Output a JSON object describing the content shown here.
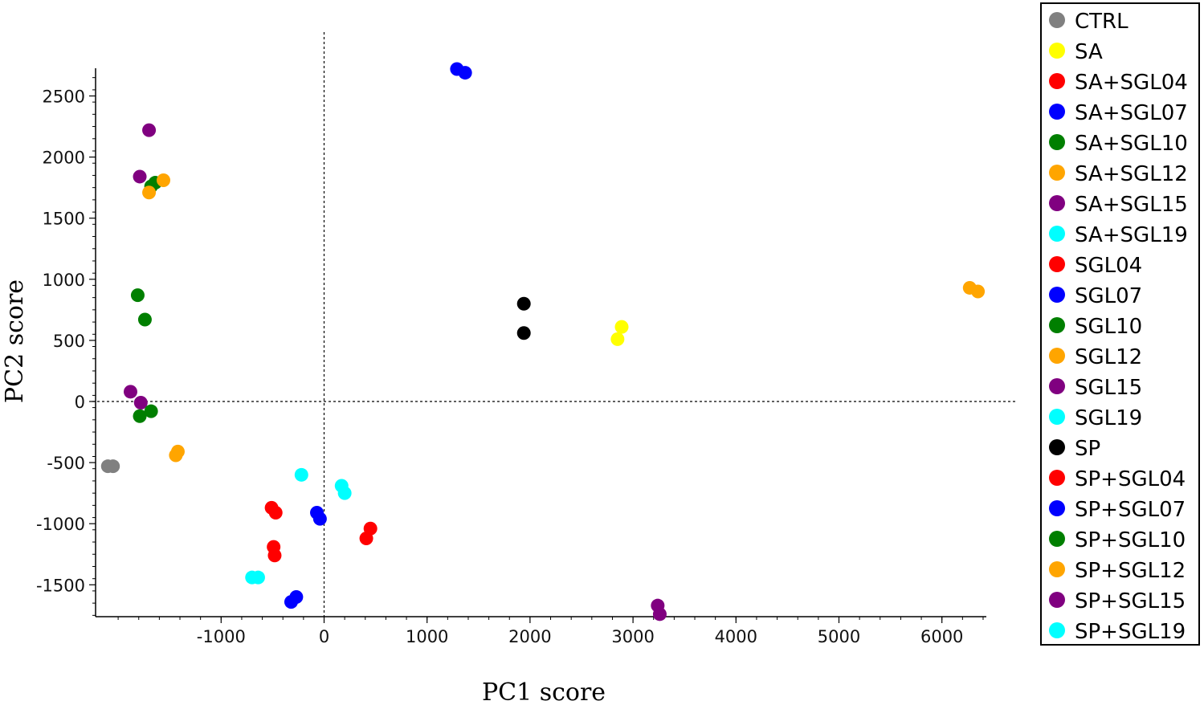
{
  "chart_data": {
    "type": "scatter",
    "xlabel": "PC1 score",
    "ylabel": "PC2 score",
    "xlim": [
      -2250,
      6500
    ],
    "ylim": [
      -1760,
      2730
    ],
    "x_ticks": [
      -1000,
      0,
      1000,
      2000,
      3000,
      4000,
      5000,
      6000
    ],
    "y_ticks": [
      -1500,
      -1000,
      -500,
      0,
      500,
      1000,
      1500,
      2000,
      2500
    ],
    "reference_lines": {
      "x": 0,
      "y": 0,
      "style": "dashed"
    },
    "legend_position": "right",
    "series": [
      {
        "name": "CTRL",
        "color": "#808080",
        "points": [
          [
            -2100,
            -530
          ],
          [
            -2050,
            -530
          ]
        ]
      },
      {
        "name": "SA",
        "color": "#ffff00",
        "points": [
          [
            2850,
            510
          ],
          [
            2890,
            610
          ]
        ]
      },
      {
        "name": "SA+SGL04",
        "color": "#ff0000",
        "points": []
      },
      {
        "name": "SA+SGL07",
        "color": "#0000ff",
        "points": [
          [
            1290,
            2720
          ],
          [
            1370,
            2690
          ]
        ]
      },
      {
        "name": "SA+SGL10",
        "color": "#007f00",
        "points": [
          [
            -1680,
            1760
          ],
          [
            -1640,
            1790
          ]
        ]
      },
      {
        "name": "SA+SGL12",
        "color": "#ffa500",
        "points": [
          [
            -1560,
            1810
          ],
          [
            -1700,
            1710
          ]
        ]
      },
      {
        "name": "SA+SGL15",
        "color": "#800080",
        "points": [
          [
            -1700,
            2220
          ],
          [
            -1790,
            1840
          ]
        ]
      },
      {
        "name": "SA+SGL19",
        "color": "#00ffff",
        "points": []
      },
      {
        "name": "SGL04",
        "color": "#ff0000",
        "points": [
          [
            -510,
            -870
          ],
          [
            -470,
            -910
          ]
        ]
      },
      {
        "name": "SGL07",
        "color": "#0000ff",
        "points": [
          [
            -70,
            -910
          ],
          [
            -40,
            -960
          ]
        ]
      },
      {
        "name": "SGL10",
        "color": "#007f00",
        "points": [
          [
            -1810,
            870
          ],
          [
            -1740,
            670
          ]
        ]
      },
      {
        "name": "SGL12",
        "color": "#ffa500",
        "points": [
          [
            -1440,
            -440
          ],
          [
            -1420,
            -410
          ]
        ]
      },
      {
        "name": "SGL15",
        "color": "#800080",
        "points": [
          [
            -1880,
            80
          ],
          [
            -1780,
            -10
          ]
        ]
      },
      {
        "name": "SGL19",
        "color": "#00ffff",
        "points": [
          [
            -220,
            -600
          ],
          [
            170,
            -690
          ],
          [
            200,
            -750
          ]
        ]
      },
      {
        "name": "SP",
        "color": "#000000",
        "points": [
          [
            1940,
            800
          ],
          [
            1940,
            560
          ]
        ]
      },
      {
        "name": "SP+SGL04",
        "color": "#ff0000",
        "points": [
          [
            -490,
            -1190
          ],
          [
            -480,
            -1260
          ],
          [
            410,
            -1120
          ],
          [
            450,
            -1040
          ]
        ]
      },
      {
        "name": "SP+SGL07",
        "color": "#0000ff",
        "points": [
          [
            -320,
            -1640
          ],
          [
            -270,
            -1600
          ]
        ]
      },
      {
        "name": "SP+SGL10",
        "color": "#007f00",
        "points": [
          [
            -1790,
            -120
          ],
          [
            -1680,
            -80
          ]
        ]
      },
      {
        "name": "SP+SGL12",
        "color": "#ffa500",
        "points": [
          [
            6270,
            930
          ],
          [
            6350,
            900
          ]
        ]
      },
      {
        "name": "SP+SGL15",
        "color": "#800080",
        "points": [
          [
            3240,
            -1670
          ],
          [
            3260,
            -1740
          ]
        ]
      },
      {
        "name": "SP+SGL19",
        "color": "#00ffff",
        "points": [
          [
            -700,
            -1440
          ],
          [
            -640,
            -1440
          ]
        ]
      }
    ]
  }
}
